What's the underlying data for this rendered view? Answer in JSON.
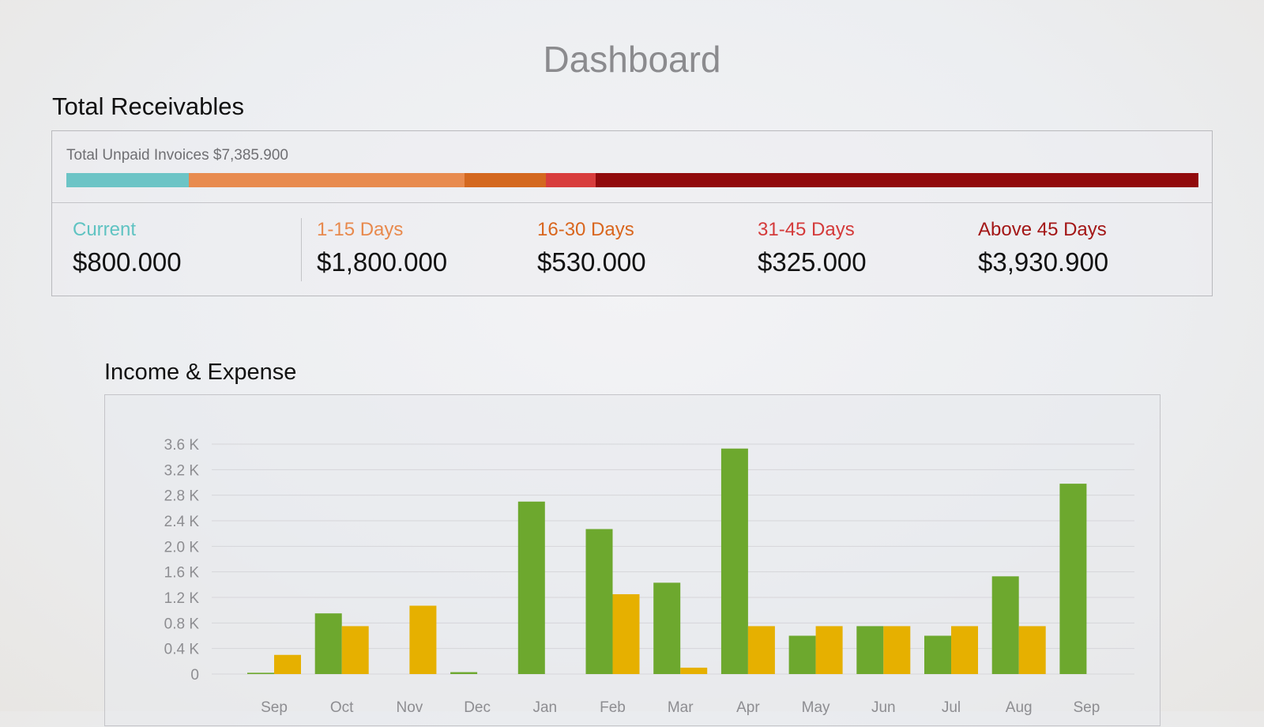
{
  "page": {
    "title": "Dashboard"
  },
  "receivables": {
    "title": "Total Receivables",
    "unpaid_label": "Total Unpaid Invoices $7,385.900",
    "buckets": [
      {
        "label": "Current",
        "value": "$800.000",
        "amount": 800,
        "color": "#5fc3c2",
        "bar_color": "#6cc4c6"
      },
      {
        "label": "1-15 Days",
        "value": "$1,800.000",
        "amount": 1800,
        "color": "#e8894d",
        "bar_color": "#e88b4f"
      },
      {
        "label": "16-30 Days",
        "value": "$530.000",
        "amount": 530,
        "color": "#d9661e",
        "bar_color": "#d4681f"
      },
      {
        "label": "31-45 Days",
        "value": "$325.000",
        "amount": 325,
        "color": "#d43a3a",
        "bar_color": "#d83d3d"
      },
      {
        "label": "Above 45 Days",
        "value": "$3,930.900",
        "amount": 3930.9,
        "color": "#a31616",
        "bar_color": "#910a0c"
      }
    ]
  },
  "income_expense": {
    "title": "Income & Expense"
  },
  "chart_data": {
    "type": "bar",
    "categories": [
      "Sep",
      "Oct",
      "Nov",
      "Dec",
      "Jan",
      "Feb",
      "Mar",
      "Apr",
      "May",
      "Jun",
      "Jul",
      "Aug",
      "Sep"
    ],
    "series": [
      {
        "values": [
          0.02,
          0.95,
          0,
          0.03,
          2.7,
          2.27,
          1.43,
          3.53,
          0.6,
          0.75,
          0.6,
          1.53,
          2.98
        ],
        "color": "#6da82e"
      },
      {
        "values": [
          0.3,
          0.75,
          1.07,
          0,
          0,
          1.25,
          0.1,
          0.75,
          0.75,
          0.75,
          0.75,
          0.75,
          0
        ],
        "color": "#e6b000"
      }
    ],
    "yticks": [
      "0",
      "0.4 K",
      "0.8 K",
      "1.2 K",
      "1.6 K",
      "2.0 K",
      "2.4 K",
      "2.8 K",
      "3.2 K",
      "3.6 K"
    ],
    "ylim": [
      0,
      3.6
    ],
    "grid": true
  }
}
